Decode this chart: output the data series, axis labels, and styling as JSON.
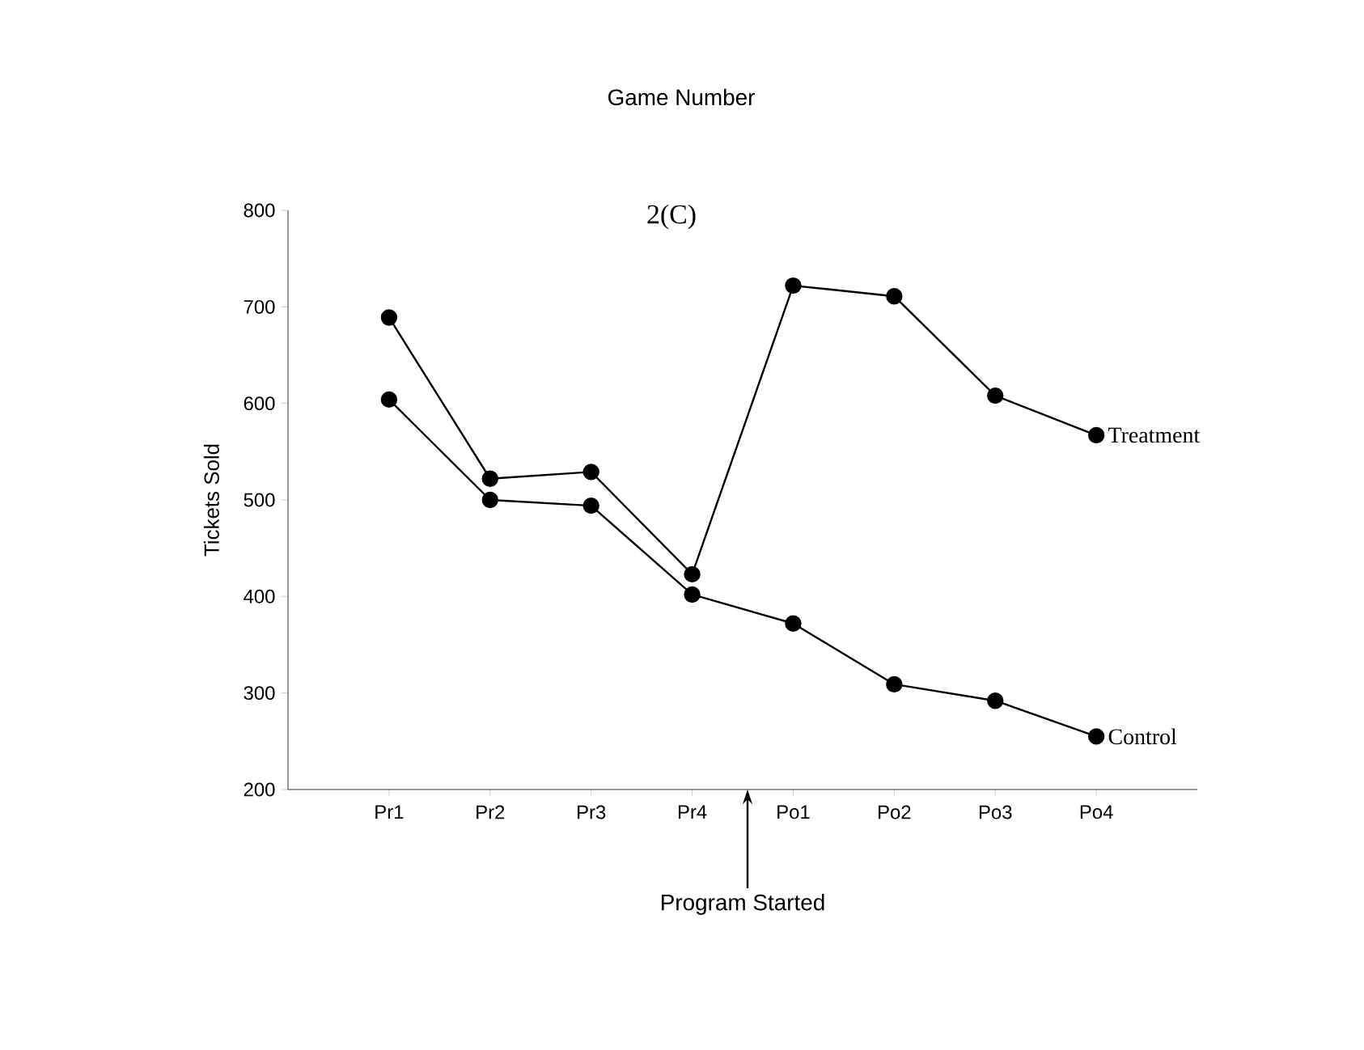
{
  "chart_data": {
    "type": "line",
    "title": "2(C)",
    "ylabel": "Tickets Sold",
    "categories": [
      "Pr1",
      "Pr2",
      "Pr3",
      "Pr4",
      "Po1",
      "Po2",
      "Po3",
      "Po4"
    ],
    "series": [
      {
        "name": "Treatment",
        "color": "#000000",
        "values": [
          689,
          522,
          529,
          423,
          722,
          711,
          608,
          567
        ]
      },
      {
        "name": "Control",
        "color": "#000000",
        "values": [
          604,
          500,
          494,
          402,
          372,
          309,
          292,
          255
        ]
      }
    ],
    "ylim": [
      200,
      800
    ],
    "yticks": [
      200,
      300,
      400,
      500,
      600,
      700,
      800
    ],
    "marker": "circle",
    "line_style": "solid",
    "grid": false,
    "legend": false,
    "annotations": [
      "Game Number",
      "Program Started"
    ]
  }
}
